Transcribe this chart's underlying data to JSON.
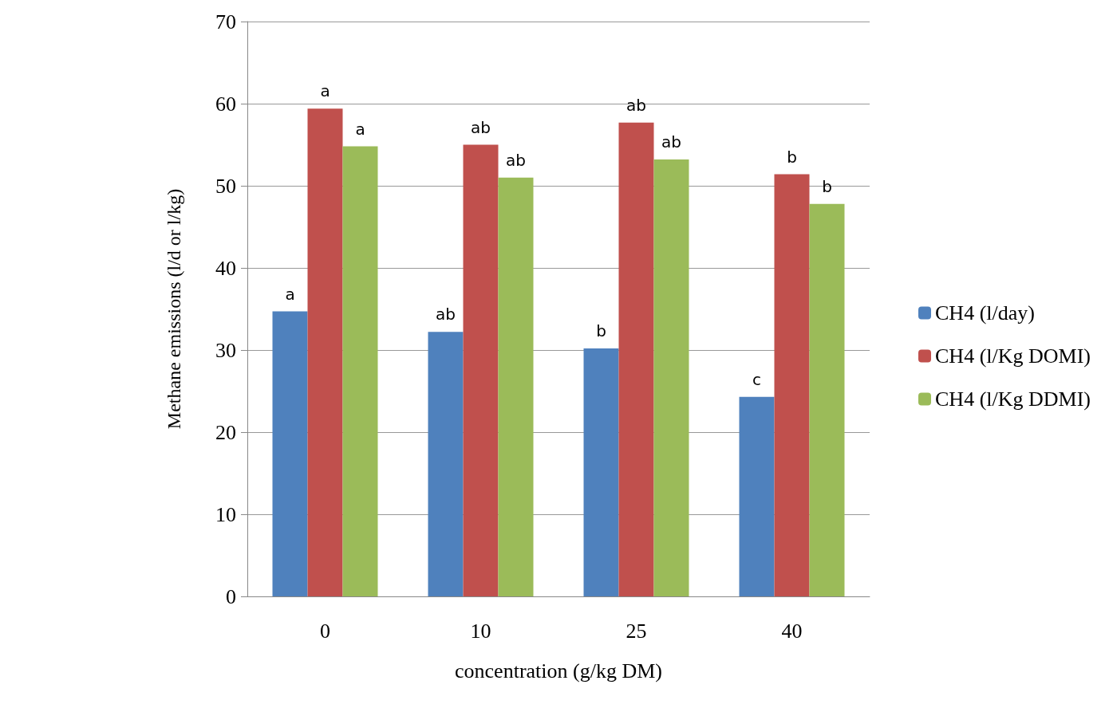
{
  "chart_data": {
    "type": "bar",
    "xlabel": "concentration (g/kg DM)",
    "ylabel": "Methane emissions (l/d or l/kg)",
    "categories": [
      "0",
      "10",
      "25",
      "40"
    ],
    "series": [
      {
        "name": "CH4 (l/day)",
        "color": "#4f81bd",
        "values": [
          34.7,
          32.2,
          30.2,
          24.3
        ],
        "value_labels": [
          "a",
          "ab",
          "b",
          "c"
        ]
      },
      {
        "name": "CH4 (l/Kg DOMI)",
        "color": "#c0504d",
        "values": [
          59.4,
          55.0,
          57.7,
          51.4
        ],
        "value_labels": [
          "a",
          "ab",
          "ab",
          "b"
        ]
      },
      {
        "name": "CH4 (l/Kg DDMI)",
        "color": "#9bbb59",
        "values": [
          54.8,
          51.0,
          53.2,
          47.8
        ],
        "value_labels": [
          "a",
          "ab",
          "ab",
          "b"
        ]
      }
    ],
    "ylim": [
      0,
      70
    ],
    "yticks": [
      0,
      10,
      20,
      30,
      40,
      50,
      60,
      70
    ],
    "grid": "y",
    "legend": "right"
  }
}
